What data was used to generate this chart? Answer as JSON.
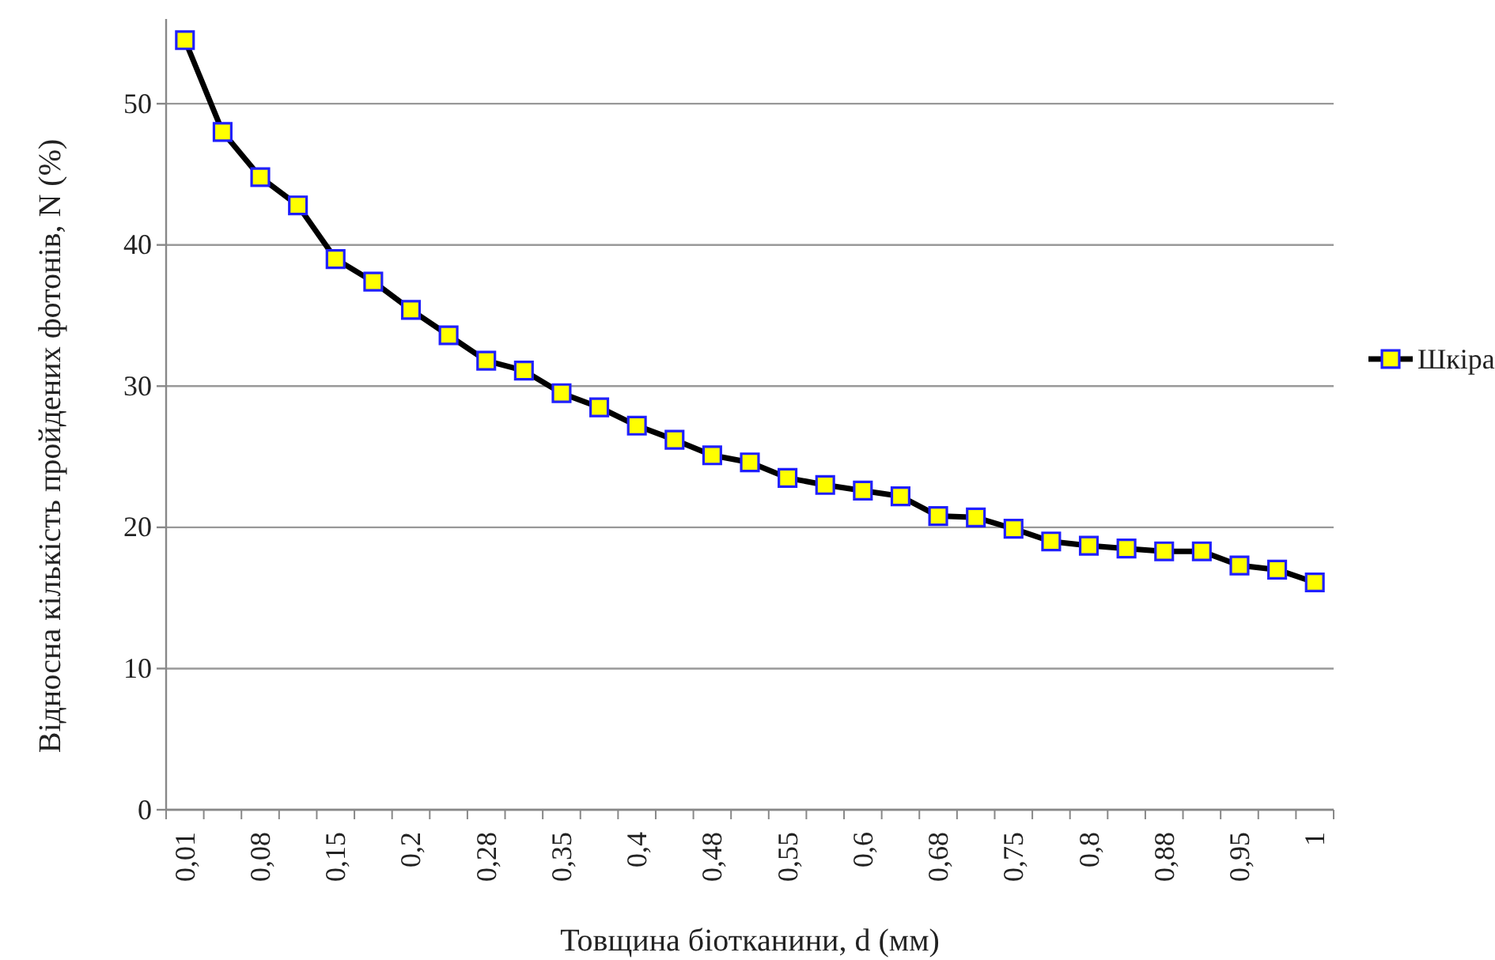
{
  "chart_data": {
    "type": "line",
    "xlabel": "Товщина біотканини, d (мм)",
    "ylabel": "Відносна кількість пройдених фотонів, N (%)",
    "categories": [
      "0,01",
      null,
      "0,08",
      null,
      "0,15",
      null,
      "0,2",
      null,
      "0,28",
      null,
      "0,35",
      null,
      "0,4",
      null,
      "0,48",
      null,
      "0,55",
      null,
      "0,6",
      null,
      "0,68",
      null,
      "0,75",
      null,
      "0,8",
      null,
      "0,88",
      null,
      "0,95",
      null,
      "1"
    ],
    "series": [
      {
        "name": "Шкіра",
        "color": "#000000",
        "values": [
          54.5,
          48.0,
          44.8,
          42.8,
          39.0,
          37.4,
          35.4,
          33.6,
          31.8,
          31.1,
          29.5,
          28.5,
          27.2,
          26.2,
          25.1,
          24.6,
          23.5,
          23.0,
          22.6,
          22.2,
          20.8,
          20.7,
          19.9,
          19.0,
          18.7,
          18.5,
          18.3,
          18.3,
          17.3,
          17.0,
          16.1
        ]
      }
    ],
    "ylim": [
      0,
      56
    ],
    "yticks": [
      0,
      10,
      20,
      30,
      40,
      50
    ],
    "grid": "y",
    "legend": "right",
    "marker": "square",
    "line_style": "solid"
  }
}
